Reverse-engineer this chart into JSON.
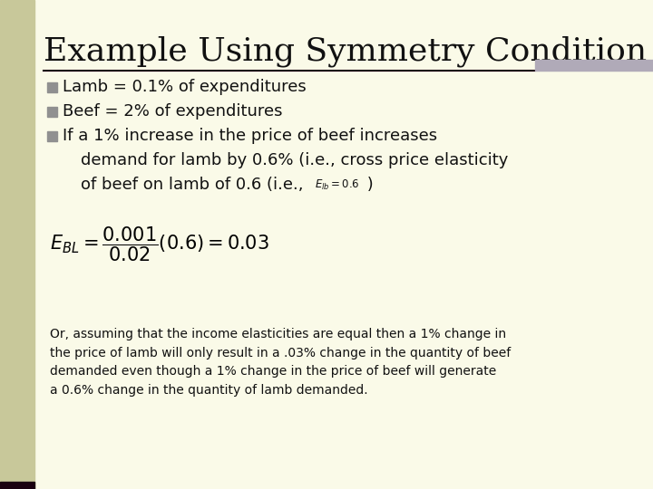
{
  "title": "Example Using Symmetry Condition",
  "title_fontsize": 26,
  "bg_color": "#fafae8",
  "left_bar_color": "#c8c89a",
  "left_bar_bottom_color": "#1a0010",
  "top_right_bar_color": "#b0aab8",
  "hr_color": "#1a0010",
  "bullet_color": "#909090",
  "bullet1": "Lamb = 0.1% of expenditures",
  "bullet2": "Beef = 2% of expenditures",
  "bullet3_line1": "If a 1% increase in the price of beef increases",
  "bullet3_line2": "demand for lamb by 0.6% (i.e., cross price elasticity",
  "bullet3_line3": "of beef on lamb of 0.6 (i.e.,",
  "bullet3_end": " )",
  "footer": "Or, assuming that the income elasticities are equal then a 1% change in\nthe price of lamb will only result in a .03% change in the quantity of beef\ndemanded even though a 1% change in the price of beef will generate\na 0.6% change in the quantity of lamb demanded.",
  "footer_fontsize": 10.0,
  "text_color": "#111111",
  "formula_color": "#000000",
  "bullet_fontsize": 13.0,
  "formula_fontsize": 15
}
